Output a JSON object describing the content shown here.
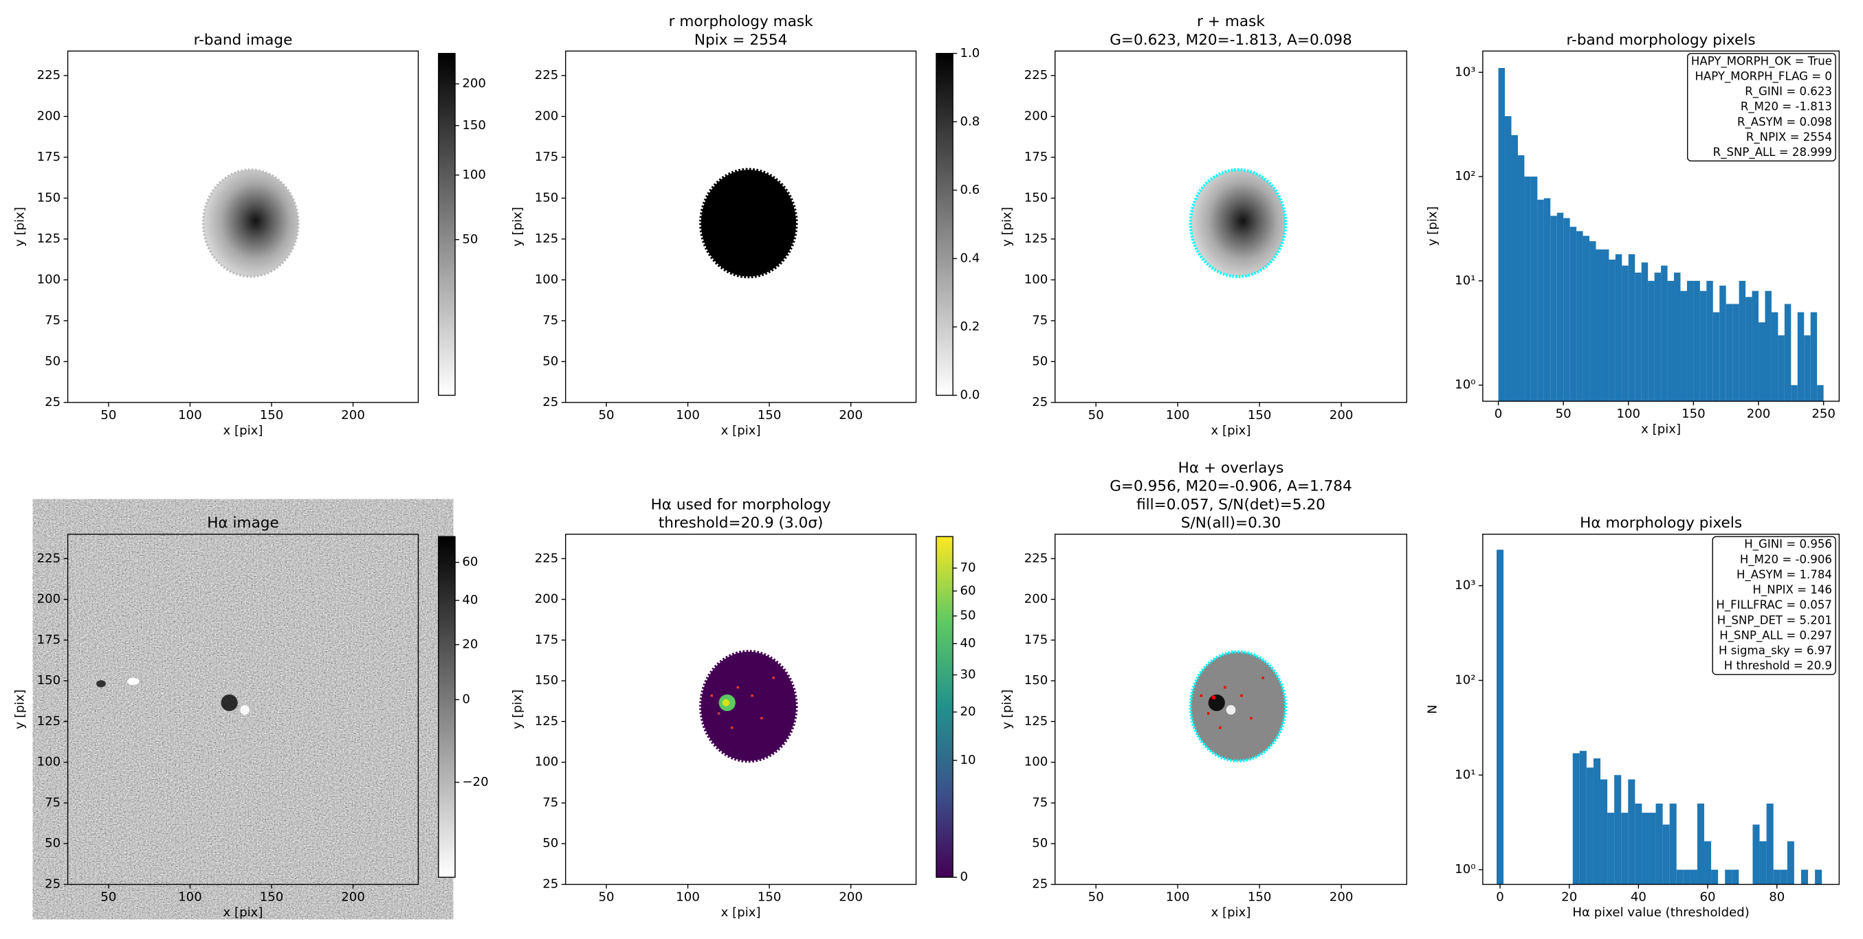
{
  "chart_data": [
    {
      "type": "image",
      "title": [
        "r-band image"
      ],
      "xlabel": "x [pix]",
      "ylabel": "y [pix]",
      "xlim": [
        25,
        240
      ],
      "ylim": [
        25,
        240
      ],
      "xticks": [
        50,
        100,
        150,
        200
      ],
      "yticks": [
        25,
        50,
        75,
        100,
        125,
        150,
        175,
        200,
        225
      ],
      "colorbar": {
        "cmap": "gray_r",
        "scale": "sqrt",
        "clim": [
          0,
          241
        ],
        "ticks": [
          50,
          100,
          150,
          200
        ]
      }
    },
    {
      "type": "image",
      "title": [
        "r morphology mask",
        "Npix = 2554"
      ],
      "xlabel": "x [pix]",
      "ylabel": "y [pix]",
      "xlim": [
        25,
        240
      ],
      "ylim": [
        25,
        240
      ],
      "xticks": [
        50,
        100,
        150,
        200
      ],
      "yticks": [
        25,
        50,
        75,
        100,
        125,
        150,
        175,
        200,
        225
      ],
      "colorbar": {
        "cmap": "gray_r",
        "scale": "linear",
        "clim": [
          0,
          1
        ],
        "ticks": [
          {
            "value": 0,
            "label": "0.0"
          },
          {
            "value": 0.2,
            "label": "0.2"
          },
          {
            "value": 0.4,
            "label": "0.4"
          },
          {
            "value": 0.6,
            "label": "0.6"
          },
          {
            "value": 0.8,
            "label": "0.8"
          },
          {
            "value": 1,
            "label": "1.0"
          }
        ]
      }
    },
    {
      "type": "image",
      "title": [
        "r + mask",
        "G=0.623, M20=-1.813, A=0.098"
      ],
      "xlabel": "x [pix]",
      "ylabel": "y [pix]",
      "xlim": [
        25,
        240
      ],
      "ylim": [
        25,
        240
      ],
      "xticks": [
        50,
        100,
        150,
        200
      ],
      "yticks": [
        25,
        50,
        75,
        100,
        125,
        150,
        175,
        200,
        225
      ]
    },
    {
      "type": "histogram",
      "title": [
        "r-band morphology pixels"
      ],
      "xlabel": "x [pix]",
      "ylabel": "y [pix]",
      "color": "#1f77b4",
      "yscale": "log",
      "bins": [
        0,
        5,
        10,
        15,
        20,
        25,
        30,
        35,
        40,
        45,
        50,
        55,
        60,
        65,
        70,
        75,
        80,
        85,
        90,
        95,
        100,
        105,
        110,
        115,
        120,
        125,
        130,
        135,
        140,
        145,
        150,
        155,
        160,
        165,
        170,
        175,
        180,
        185,
        190,
        195,
        200,
        205,
        210,
        215,
        220,
        225,
        230,
        235,
        240,
        245,
        250
      ],
      "counts": [
        1100,
        380,
        250,
        160,
        100,
        100,
        60,
        62,
        42,
        45,
        40,
        33,
        30,
        27,
        24,
        20,
        20,
        16,
        18,
        14,
        18,
        12,
        15,
        10,
        12,
        14,
        10,
        12,
        8,
        10,
        10,
        8,
        10,
        5,
        9,
        6,
        6,
        10,
        7,
        8,
        4,
        8,
        5,
        3,
        6,
        1,
        5,
        3,
        5,
        1
      ],
      "xlim": [
        -12,
        262
      ],
      "ylim": [
        0.7,
        1600
      ],
      "xticks": [
        0,
        50,
        100,
        150,
        200,
        250
      ],
      "yticks": [
        {
          "value": 1,
          "label": "10⁰"
        },
        {
          "value": 10,
          "label": "10¹"
        },
        {
          "value": 100,
          "label": "10²"
        },
        {
          "value": 1000,
          "label": "10³"
        }
      ],
      "annotation": [
        "HAPY_MORPH_OK = True",
        "HAPY_MORPH_FLAG = 0",
        "R_GINI = 0.623",
        "R_M20 = -1.813",
        "R_ASYM = 0.098",
        "R_NPIX = 2554",
        "R_SNP_ALL = 28.999"
      ]
    },
    {
      "type": "image",
      "title": [
        "Hα image"
      ],
      "xlabel": "x [pix]",
      "ylabel": "y [pix]",
      "xlim": [
        25,
        240
      ],
      "ylim": [
        25,
        240
      ],
      "xticks": [
        50,
        100,
        150,
        200
      ],
      "yticks": [
        25,
        50,
        75,
        100,
        125,
        150,
        175,
        200,
        225
      ],
      "colorbar": {
        "cmap": "gray_r",
        "scale": "sqrt",
        "clim": [
          -28,
          75
        ],
        "ticks": [
          {
            "value": -20,
            "label": "−20"
          },
          0,
          20,
          40,
          60
        ]
      }
    },
    {
      "type": "image",
      "title": [
        "Hα used for morphology",
        "threshold=20.9 (3.0σ)"
      ],
      "xlabel": "x [pix]",
      "ylabel": "y [pix]",
      "xlim": [
        25,
        240
      ],
      "ylim": [
        25,
        240
      ],
      "xticks": [
        50,
        100,
        150,
        200
      ],
      "yticks": [
        25,
        50,
        75,
        100,
        125,
        150,
        175,
        200,
        225
      ],
      "colorbar": {
        "cmap": "viridis",
        "scale": "sqrt",
        "clim": [
          0,
          85
        ],
        "ticks": [
          0,
          10,
          20,
          30,
          40,
          50,
          60,
          70
        ]
      }
    },
    {
      "type": "image",
      "title": [
        "Hα + overlays",
        "G=0.956, M20=-0.906, A=1.784",
        "fill=0.057, S/N(det)=5.20",
        "S/N(all)=0.30"
      ],
      "xlabel": "x [pix]",
      "ylabel": "y [pix]",
      "xlim": [
        25,
        240
      ],
      "ylim": [
        25,
        240
      ],
      "xticks": [
        50,
        100,
        150,
        200
      ],
      "yticks": [
        25,
        50,
        75,
        100,
        125,
        150,
        175,
        200,
        225
      ]
    },
    {
      "type": "histogram",
      "title": [
        "Hα morphology pixels"
      ],
      "xlabel": "Hα pixel value (thresholded)",
      "ylabel": "N",
      "color": "#1f77b4",
      "yscale": "log",
      "bins": [
        -1,
        1,
        3,
        5,
        7,
        9,
        11,
        13,
        15,
        17,
        19,
        21,
        23,
        25,
        27,
        29,
        31,
        33,
        35,
        37,
        39,
        41,
        43,
        45,
        47,
        49,
        51,
        53,
        55,
        57,
        59,
        61,
        63,
        65,
        67,
        69,
        71,
        73,
        75,
        77,
        79,
        81,
        83,
        85,
        87,
        89,
        91,
        93
      ],
      "counts": [
        2400,
        0,
        0,
        0,
        0,
        0,
        0,
        0,
        0,
        0,
        0,
        17,
        18,
        12,
        15,
        9,
        4,
        10,
        4,
        9,
        5,
        4,
        4,
        5,
        3,
        5,
        1,
        1,
        1,
        5,
        2,
        1,
        0,
        1,
        1,
        0,
        0,
        3,
        2,
        5,
        1,
        1,
        2,
        0,
        1,
        0,
        1
      ],
      "xlim": [
        -5,
        98
      ],
      "ylim": [
        0.7,
        3500
      ],
      "xticks": [
        0,
        20,
        40,
        60,
        80
      ],
      "yticks": [
        {
          "value": 1,
          "label": "10⁰"
        },
        {
          "value": 10,
          "label": "10¹"
        },
        {
          "value": 100,
          "label": "10²"
        },
        {
          "value": 1000,
          "label": "10³"
        }
      ],
      "annotation": [
        "H_GINI = 0.956",
        "H_M20 = -0.906",
        "H_ASYM = 1.784",
        "H_NPIX = 146",
        "H_FILLFRAC = 0.057",
        "H_SNP_DET = 5.201",
        "H_SNP_ALL = 0.297",
        "H sigma_sky = 6.97",
        "H threshold = 20.9"
      ]
    }
  ]
}
